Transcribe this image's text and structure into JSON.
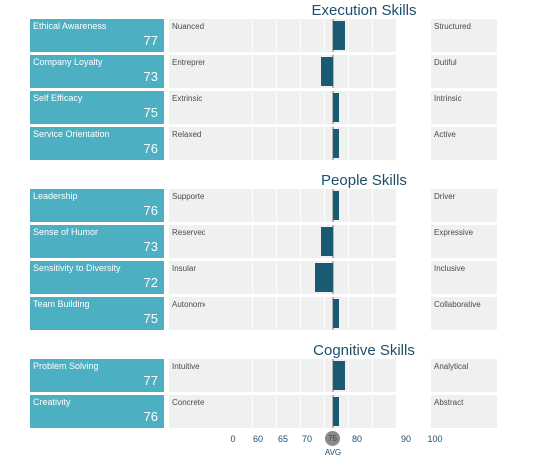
{
  "chart_data": {
    "type": "bar",
    "orientation": "horizontal",
    "scale_ticks": [
      "0",
      "60",
      "65",
      "70",
      "75",
      "80",
      "90",
      "100"
    ],
    "average_label": "AVG",
    "average_value": 75,
    "groups": [
      {
        "title": "Execution Skills",
        "items": [
          {
            "name": "Ethical Awareness",
            "score": 77,
            "low": "Nuanced",
            "high": "Structured"
          },
          {
            "name": "Company Loyalty",
            "score": 73,
            "low": "Entrepreneurial",
            "high": "Dutiful"
          },
          {
            "name": "Self Efficacy",
            "score": 75,
            "low": "Extrinsic",
            "high": "Intrinsic"
          },
          {
            "name": "Service Orientation",
            "score": 76,
            "low": "Relaxed",
            "high": "Active"
          }
        ]
      },
      {
        "title": "People Skills",
        "items": [
          {
            "name": "Leadership",
            "score": 76,
            "low": "Supporter",
            "high": "Driver"
          },
          {
            "name": "Sense of Humor",
            "score": 73,
            "low": "Reserved",
            "high": "Expressive"
          },
          {
            "name": "Sensitivity to Diversity",
            "score": 72,
            "low": "Insular",
            "high": "Inclusive"
          },
          {
            "name": "Team Building",
            "score": 75,
            "low": "Autonomous",
            "high": "Collaborative"
          }
        ]
      },
      {
        "title": "Cognitive Skills",
        "items": [
          {
            "name": "Problem Solving",
            "score": 77,
            "low": "Intuitive",
            "high": "Analytical"
          },
          {
            "name": "Creativity",
            "score": 76,
            "low": "Concrete",
            "high": "Abstract"
          }
        ]
      }
    ]
  },
  "colors": {
    "label_bg": "#4dafc2",
    "bar": "#1b5a73",
    "track": "#eff1f1",
    "title": "#1d4e6c",
    "avg_marker": "#8a8a8a"
  }
}
